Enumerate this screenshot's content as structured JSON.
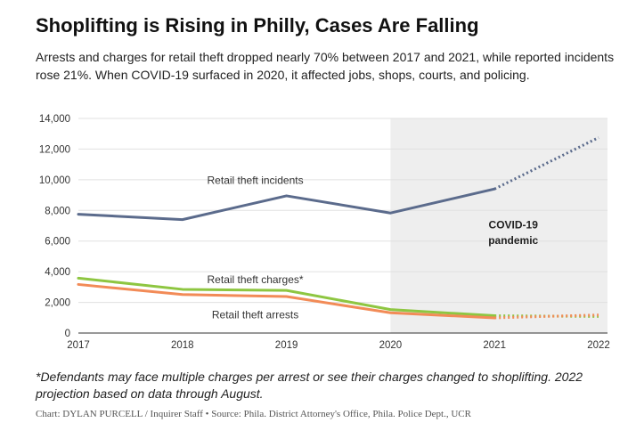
{
  "header": {
    "title": "Shoplifting is Rising in Philly, Cases Are Falling",
    "subtitle": "Arrests and charges for retail theft dropped nearly 70% between 2017 and 2021, while reported incidents rose 21%. When COVID-19 surfaced in 2020, it affected jobs, shops, courts, and policing."
  },
  "footer": {
    "note": "*Defendants may face multiple charges per arrest or see their charges changed to shoplifting. 2022 projection based on data through August.",
    "credit": "Chart: DYLAN PURCELL / Inquirer Staff • Source: Phila. District Attorney's Office, Phila. Police Dept., UCR"
  },
  "chart_data": {
    "type": "line",
    "x": [
      2017,
      2018,
      2019,
      2020,
      2021,
      2022
    ],
    "xlim": [
      2017,
      2022
    ],
    "ylim": [
      0,
      14000
    ],
    "yticks": [
      0,
      2000,
      4000,
      6000,
      8000,
      10000,
      12000,
      14000
    ],
    "ytick_labels": [
      "0",
      "2,000",
      "4,000",
      "6,000",
      "8,000",
      "10,000",
      "12,000",
      "14,000"
    ],
    "xtick_labels": [
      "2017",
      "2018",
      "2019",
      "2020",
      "2021",
      "2022"
    ],
    "grid": "horizontal",
    "projection_from": 2021,
    "shaded_region": {
      "from": 2020,
      "to": 2022,
      "label_line1": "COVID-19",
      "label_line2": "pandemic",
      "color": "#eeeeee"
    },
    "series": [
      {
        "name": "Retail theft incidents",
        "color": "#5b6b8c",
        "values": [
          7750,
          7400,
          8950,
          7830,
          9400,
          12750
        ]
      },
      {
        "name": "Retail theft charges*",
        "color": "#8ec641",
        "values": [
          3580,
          2850,
          2780,
          1530,
          1130,
          1080
        ]
      },
      {
        "name": "Retail theft arrests",
        "color": "#f28b57",
        "values": [
          3170,
          2510,
          2380,
          1320,
          990,
          1180
        ]
      }
    ]
  }
}
